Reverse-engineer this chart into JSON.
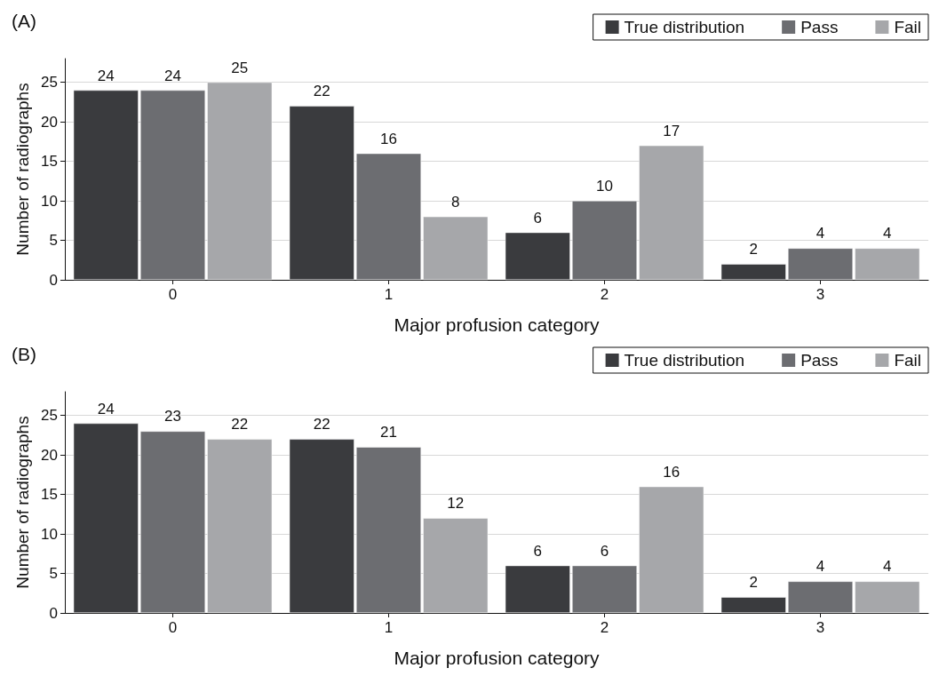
{
  "chart_data": [
    {
      "type": "bar",
      "title": "(A)",
      "xlabel": "Major profusion category",
      "ylabel": "Number of radiographs",
      "categories": [
        "0",
        "1",
        "2",
        "3"
      ],
      "series": [
        {
          "name": "True distribution",
          "color": "#3a3b3e",
          "values": [
            24,
            22,
            6,
            2
          ]
        },
        {
          "name": "Pass",
          "color": "#6c6d71",
          "values": [
            24,
            16,
            10,
            4
          ]
        },
        {
          "name": "Fail",
          "color": "#a6a7aa",
          "values": [
            25,
            8,
            17,
            4
          ]
        }
      ],
      "ylim": [
        0,
        28
      ],
      "yticks": [
        0,
        5,
        10,
        15,
        20,
        25
      ],
      "grid": "y",
      "legend": "top right",
      "data_labels": true
    },
    {
      "type": "bar",
      "title": "(B)",
      "xlabel": "Major profusion category",
      "ylabel": "Number of radiographs",
      "categories": [
        "0",
        "1",
        "2",
        "3"
      ],
      "series": [
        {
          "name": "True distribution",
          "color": "#3a3b3e",
          "values": [
            24,
            22,
            6,
            2
          ]
        },
        {
          "name": "Pass",
          "color": "#6c6d71",
          "values": [
            23,
            21,
            6,
            4
          ]
        },
        {
          "name": "Fail",
          "color": "#a6a7aa",
          "values": [
            22,
            12,
            16,
            4
          ]
        }
      ],
      "ylim": [
        0,
        28
      ],
      "yticks": [
        0,
        5,
        10,
        15,
        20,
        25
      ],
      "grid": "y",
      "legend": "top right",
      "data_labels": true
    }
  ]
}
